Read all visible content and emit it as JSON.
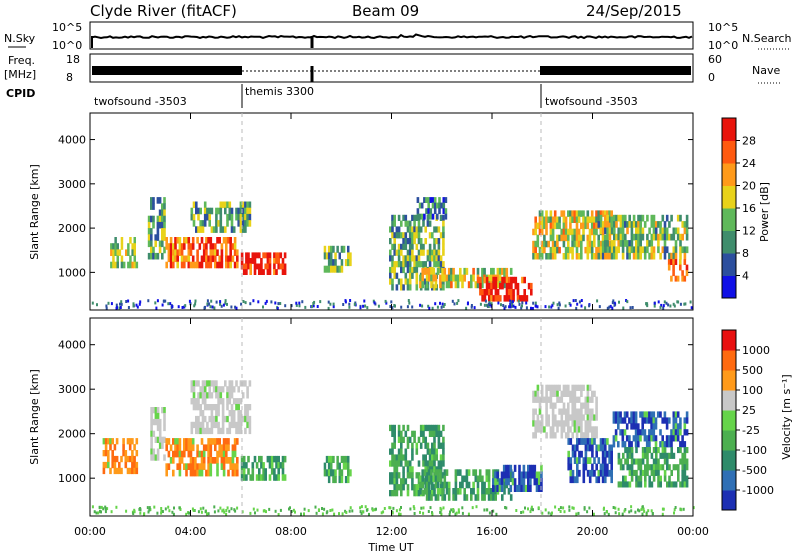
{
  "header": {
    "station": "Clyde River (fitACF)",
    "beam": "Beam 09",
    "date": "24/Sep/2015"
  },
  "strip_panels": {
    "nsky_label": "N.Sky",
    "nsky_ticks": [
      "10^5",
      "10^0"
    ],
    "nsearch_label": "N.Search",
    "freq_label": "Freq.",
    "freq_unit": "[MHz]",
    "freq_ticks": [
      "18",
      "8"
    ],
    "nave_label": "Nave",
    "nave_ticks": [
      "60",
      "0"
    ],
    "cpid_label": "CPID",
    "cpid_segments": [
      {
        "name": "twofsound -3503",
        "start_hour": 0,
        "end_hour": 6
      },
      {
        "name": "themis 3300",
        "start_hour": 6,
        "end_hour": 18
      },
      {
        "name": "twofsound -3503",
        "start_hour": 18,
        "end_hour": 24
      }
    ]
  },
  "chart_data": [
    {
      "type": "heatmap",
      "panel": "power",
      "ylabel": "Slant Range [km]",
      "x_range_hours": [
        0,
        24
      ],
      "ylim": [
        150,
        4600
      ],
      "yticks": [
        "1000",
        "2000",
        "3000",
        "4000"
      ],
      "colorbar_label": "Power [dB]",
      "colorbar_ticks": [
        "4",
        "8",
        "12",
        "16",
        "20",
        "24",
        "28"
      ],
      "colorbar_colors": [
        "#1010e6",
        "#2c4f9e",
        "#3f8d6c",
        "#5fb85a",
        "#e8d21a",
        "#ff9a1a",
        "#ff5a10",
        "#e8140c"
      ],
      "regions": [
        {
          "x": [
            0.8,
            1.9
          ],
          "y": [
            1100,
            1800
          ],
          "level": 0.45
        },
        {
          "x": [
            2.3,
            3.0
          ],
          "y": [
            1300,
            2700
          ],
          "level": 0.35
        },
        {
          "x": [
            3.0,
            5.9
          ],
          "y": [
            1100,
            1800
          ],
          "level": 0.8
        },
        {
          "x": [
            4.0,
            6.4
          ],
          "y": [
            1900,
            2600
          ],
          "level": 0.4
        },
        {
          "x": [
            6.0,
            7.8
          ],
          "y": [
            950,
            1450
          ],
          "level": 0.95
        },
        {
          "x": [
            9.3,
            10.4
          ],
          "y": [
            1000,
            1600
          ],
          "level": 0.4
        },
        {
          "x": [
            11.9,
            14.1
          ],
          "y": [
            600,
            2300
          ],
          "level": 0.4
        },
        {
          "x": [
            13.0,
            14.2
          ],
          "y": [
            2200,
            2700
          ],
          "level": 0.3
        },
        {
          "x": [
            13.1,
            16.8
          ],
          "y": [
            650,
            1100
          ],
          "level": 0.55
        },
        {
          "x": [
            15.4,
            17.6
          ],
          "y": [
            350,
            900
          ],
          "level": 0.95
        },
        {
          "x": [
            17.6,
            20.8
          ],
          "y": [
            1300,
            2400
          ],
          "level": 0.55
        },
        {
          "x": [
            20.2,
            23.8
          ],
          "y": [
            1300,
            2300
          ],
          "level": 0.45
        },
        {
          "x": [
            23.0,
            23.8
          ],
          "y": [
            800,
            1300
          ],
          "level": 0.8
        }
      ]
    },
    {
      "type": "heatmap",
      "panel": "velocity",
      "ylabel": "Slant Range [km]",
      "xlabel": "Time UT",
      "x_range_hours": [
        0,
        24
      ],
      "xticks": [
        "00:00",
        "04:00",
        "08:00",
        "12:00",
        "16:00",
        "20:00",
        "00:00"
      ],
      "ylim": [
        150,
        4600
      ],
      "yticks": [
        "1000",
        "2000",
        "3000",
        "4000"
      ],
      "colorbar_label": "Velocity [m s⁻¹]",
      "colorbar_ticks": [
        "1000",
        "500",
        "100",
        "25",
        "-25",
        "-100",
        "-500",
        "-1000"
      ],
      "colorbar_colors": [
        "#1c2fb3",
        "#2f6fb5",
        "#2e8b6a",
        "#4caf50",
        "#66d44a",
        "#c8c8c8",
        "#ff9a1a",
        "#ff6a10",
        "#e81010"
      ],
      "regions": [
        {
          "x": [
            0.5,
            1.9
          ],
          "y": [
            1100,
            1900
          ],
          "v": "orange"
        },
        {
          "x": [
            2.4,
            3.0
          ],
          "y": [
            1400,
            2600
          ],
          "v": "grey"
        },
        {
          "x": [
            3.0,
            5.9
          ],
          "y": [
            1050,
            1900
          ],
          "v": "orange"
        },
        {
          "x": [
            4.0,
            6.4
          ],
          "y": [
            2000,
            3200
          ],
          "v": "grey"
        },
        {
          "x": [
            6.0,
            7.8
          ],
          "y": [
            950,
            1500
          ],
          "v": "green"
        },
        {
          "x": [
            9.3,
            10.4
          ],
          "y": [
            900,
            1500
          ],
          "v": "green"
        },
        {
          "x": [
            11.9,
            14.1
          ],
          "y": [
            600,
            2200
          ],
          "v": "green"
        },
        {
          "x": [
            13.1,
            16.8
          ],
          "y": [
            500,
            1200
          ],
          "v": "green"
        },
        {
          "x": [
            16.0,
            18.0
          ],
          "y": [
            700,
            1300
          ],
          "v": "blue"
        },
        {
          "x": [
            17.6,
            20.2
          ],
          "y": [
            1900,
            3100
          ],
          "v": "grey"
        },
        {
          "x": [
            19.0,
            20.8
          ],
          "y": [
            900,
            1900
          ],
          "v": "blue"
        },
        {
          "x": [
            20.8,
            23.8
          ],
          "y": [
            1700,
            2500
          ],
          "v": "blue"
        },
        {
          "x": [
            21.0,
            23.8
          ],
          "y": [
            800,
            1700
          ],
          "v": "green"
        }
      ]
    }
  ]
}
